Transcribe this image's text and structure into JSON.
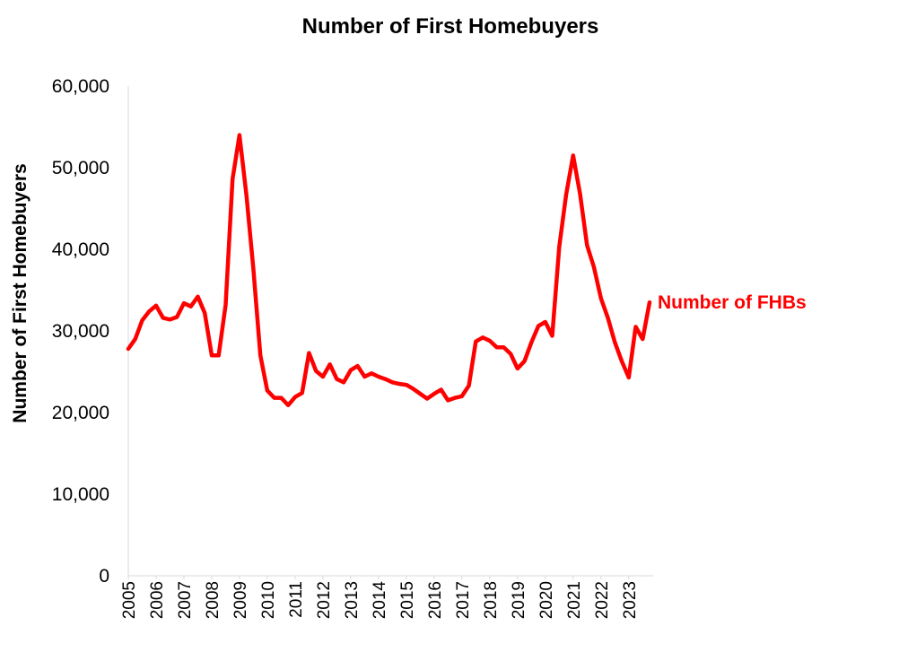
{
  "chart_data": {
    "type": "line",
    "title": "Number of First Homebuyers",
    "xlabel": "",
    "ylabel": "Number of First Homebuyers",
    "ylim": [
      0,
      60000
    ],
    "yticks": [
      "0",
      "10,000",
      "20,000",
      "30,000",
      "40,000",
      "50,000",
      "60,000"
    ],
    "ytick_values": [
      0,
      10000,
      20000,
      30000,
      40000,
      50000,
      60000
    ],
    "xticks": [
      "2005",
      "2006",
      "2007",
      "2008",
      "2009",
      "2010",
      "2011",
      "2012",
      "2013",
      "2014",
      "2015",
      "2016",
      "2017",
      "2018",
      "2019",
      "2020",
      "2021",
      "2022",
      "2023"
    ],
    "grid": false,
    "legend": "inline label at end of line",
    "series": [
      {
        "name": "Number of FHBs",
        "color": "#ff0000",
        "x": [
          2005.0,
          2005.25,
          2005.5,
          2005.75,
          2006.0,
          2006.25,
          2006.5,
          2006.75,
          2007.0,
          2007.25,
          2007.5,
          2007.75,
          2008.0,
          2008.25,
          2008.5,
          2008.75,
          2009.0,
          2009.25,
          2009.5,
          2009.75,
          2010.0,
          2010.25,
          2010.5,
          2010.75,
          2011.0,
          2011.25,
          2011.5,
          2011.75,
          2012.0,
          2012.25,
          2012.5,
          2012.75,
          2013.0,
          2013.25,
          2013.5,
          2013.75,
          2014.0,
          2014.25,
          2014.5,
          2014.75,
          2015.0,
          2015.25,
          2015.5,
          2015.75,
          2016.0,
          2016.25,
          2016.5,
          2016.75,
          2017.0,
          2017.25,
          2017.5,
          2017.75,
          2018.0,
          2018.25,
          2018.5,
          2018.75,
          2019.0,
          2019.25,
          2019.5,
          2019.75,
          2020.0,
          2020.25,
          2020.5,
          2020.75,
          2021.0,
          2021.25,
          2021.5,
          2021.75,
          2022.0,
          2022.25,
          2022.5,
          2022.75,
          2023.0,
          2023.25,
          2023.5,
          2023.75
        ],
        "values": [
          27800,
          29000,
          31300,
          32400,
          33100,
          31600,
          31400,
          31700,
          33400,
          33000,
          34200,
          32200,
          27000,
          27000,
          33200,
          48600,
          54000,
          46600,
          37600,
          27000,
          22700,
          21800,
          21800,
          20900,
          21900,
          22400,
          27300,
          25100,
          24400,
          25900,
          24100,
          23700,
          25200,
          25700,
          24400,
          24800,
          24400,
          24100,
          23700,
          23500,
          23400,
          22900,
          22300,
          21700,
          22300,
          22800,
          21500,
          21800,
          22000,
          23300,
          28700,
          29200,
          28800,
          28000,
          28000,
          27200,
          25400,
          26300,
          28600,
          30600,
          31100,
          29400,
          40300,
          46700,
          51500,
          46800,
          40500,
          37800,
          34000,
          31600,
          28600,
          26300,
          24300,
          30500,
          29000,
          33500
        ]
      }
    ]
  }
}
